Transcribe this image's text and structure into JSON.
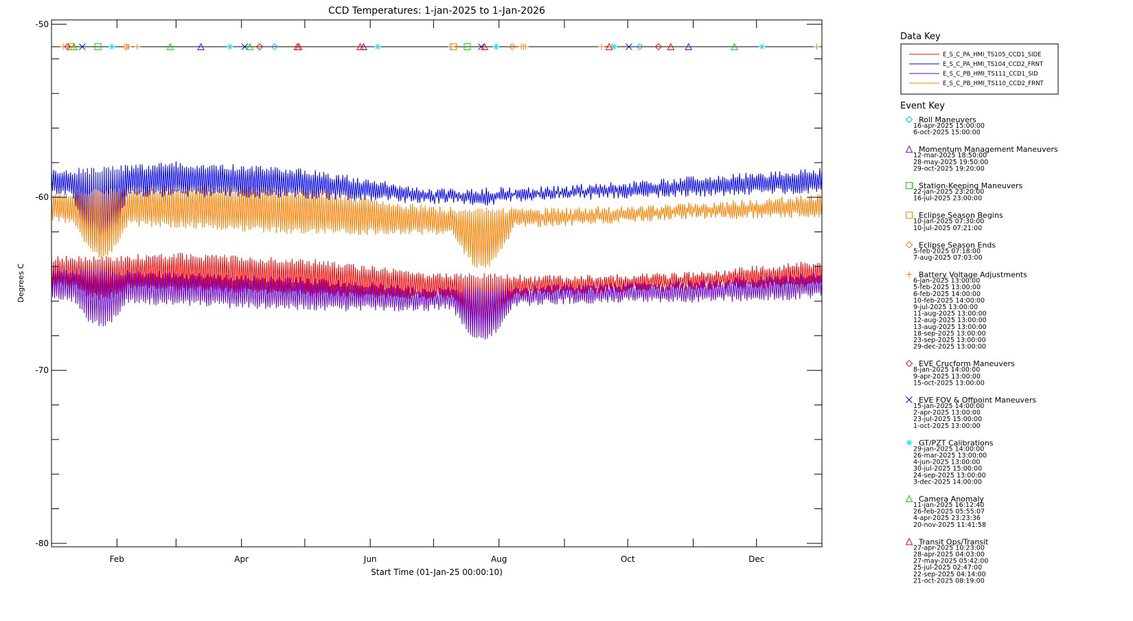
{
  "chart_data": {
    "type": "line",
    "title": "CCD Temperatures: 1-jan-2025 to 1-Jan-2026",
    "xlabel": "Start Time (01-Jan-25 00:00:10)",
    "ylabel": "Degrees C",
    "ylim": [
      -80.2,
      -49.75
    ],
    "xlim_days": [
      0,
      365
    ],
    "x_ticks": [
      {
        "label": "Feb",
        "day": 31
      },
      {
        "label": "Apr",
        "day": 90
      },
      {
        "label": "Jun",
        "day": 151
      },
      {
        "label": "Aug",
        "day": 212
      },
      {
        "label": "Oct",
        "day": 273
      },
      {
        "label": "Dec",
        "day": 334
      }
    ],
    "x_minor_days": [
      31,
      59,
      90,
      120,
      151,
      181,
      212,
      243,
      273,
      304,
      334
    ],
    "y_ticks": [
      -50,
      -60,
      -70,
      -80
    ],
    "y_tick_labels": [
      "-50",
      "-60",
      "-70",
      "-80"
    ],
    "event_line_y": -51.3,
    "series": [
      {
        "name": "E_S_C_PA_HMI_TS105_CCD1_SIDE",
        "color": "#ff0000",
        "knots_day": [
          0,
          60,
          120,
          180,
          240,
          300,
          365
        ],
        "hi": [
          -63.4,
          -63.2,
          -63.5,
          -64.3,
          -64.5,
          -64.3,
          -63.6
        ],
        "lo": [
          -65.3,
          -65.5,
          -65.8,
          -66.0,
          -65.7,
          -65.4,
          -65.2
        ],
        "eclipse": [
          {
            "start": 190,
            "end": 219,
            "depth": 2.2
          },
          {
            "start": 10,
            "end": 36,
            "depth": 0.6
          }
        ]
      },
      {
        "name": "E_S_C_PA_HMI_TS104_CCD2_FRNT",
        "color": "#0000ff",
        "knots_day": [
          0,
          60,
          120,
          180,
          240,
          300,
          365
        ],
        "hi": [
          -58.4,
          -57.9,
          -58.3,
          -59.5,
          -59.3,
          -58.8,
          -58.3
        ],
        "lo": [
          -60.0,
          -60.0,
          -60.1,
          -60.4,
          -60.2,
          -60.0,
          -59.8
        ],
        "eclipse": [
          {
            "start": 10,
            "end": 36,
            "depth": 3.3
          },
          {
            "start": 190,
            "end": 219,
            "depth": 0.2
          }
        ]
      },
      {
        "name": "E_S_C_PB_HMI_TS111_CCD1_SID",
        "color": "#6600cc",
        "knots_day": [
          0,
          60,
          120,
          180,
          240,
          300,
          365
        ],
        "hi": [
          -64.0,
          -64.3,
          -64.6,
          -65.2,
          -65.0,
          -64.8,
          -64.3
        ],
        "lo": [
          -66.0,
          -66.3,
          -66.6,
          -66.6,
          -66.2,
          -66.1,
          -65.9
        ],
        "eclipse": [
          {
            "start": 10,
            "end": 36,
            "depth": 1.4
          },
          {
            "start": 190,
            "end": 219,
            "depth": 1.9
          }
        ]
      },
      {
        "name": "E_S_C_PB_HMI_TS110_CCD2_FRNT",
        "color": "#ff8000",
        "knots_day": [
          0,
          60,
          120,
          180,
          240,
          300,
          365
        ],
        "hi": [
          -59.6,
          -59.3,
          -59.5,
          -60.5,
          -60.6,
          -60.3,
          -59.8
        ],
        "lo": [
          -61.5,
          -61.8,
          -62.2,
          -62.2,
          -61.7,
          -61.3,
          -61.2
        ],
        "eclipse": [
          {
            "start": 10,
            "end": 36,
            "depth": 2.0
          },
          {
            "start": 190,
            "end": 219,
            "depth": 2.2
          }
        ]
      }
    ]
  },
  "data_key_title": "Data Key",
  "event_key_title": "Event Key",
  "events": [
    {
      "name": "Roll Maneuvers",
      "symbol": "diamond",
      "color": "#00bfff",
      "dates": [
        "16-apr-2025 15:00:00",
        "6-oct-2025 15:00:00"
      ]
    },
    {
      "name": "Momentum Management Maneuvers",
      "symbol": "triangle",
      "color": "#6600cc",
      "dates": [
        "12-mar-2025 18:50:00",
        "28-may-2025 19:50:00",
        "29-oct-2025 19:20:00"
      ]
    },
    {
      "name": "Station-Keeping Maneuvers",
      "symbol": "square",
      "color": "#00dd00",
      "dates": [
        "22-jan-2025 23:20:00",
        "16-jul-2025 23:00:00"
      ]
    },
    {
      "name": "Eclipse Season Begins",
      "symbol": "square",
      "color": "#ff8000",
      "dates": [
        "10-jan-2025 07:30:00",
        "10-jul-2025 07:21:00"
      ]
    },
    {
      "name": "Eclipse Season Ends",
      "symbol": "diamond",
      "color": "#ff8000",
      "dates": [
        "5-feb-2025 07:18:00",
        "7-aug-2025 07:03:00"
      ]
    },
    {
      "name": "Battery Voltage Adjustments",
      "symbol": "plus",
      "color": "#ff8000",
      "dates": [
        "6-jan-2025 13:00:00",
        "5-feb-2025 13:00:00",
        "6-feb-2025 14:00:00",
        "10-feb-2025 14:00:00",
        "9-jul-2025 13:00:00",
        "11-aug-2025 13:00:00",
        "12-aug-2025 13:00:00",
        "13-aug-2025 13:00:00",
        "18-sep-2025 13:00:00",
        "23-sep-2025 13:00:00",
        "29-dec-2025 13:00:00"
      ]
    },
    {
      "name": "EVE Crucform Maneuvers",
      "symbol": "diamond",
      "color": "#ff0000",
      "dates": [
        "8-jan-2025 14:00:00",
        "9-apr-2025 13:00:00",
        "15-oct-2025 13:00:00"
      ]
    },
    {
      "name": "EVE FOV & Offpoint Maneuvers",
      "symbol": "x",
      "color": "#0000ff",
      "dates": [
        "15-jan-2025 14:00:00",
        "2-apr-2025 13:00:00",
        "23-jul-2025 15:00:00",
        "1-oct-2025 13:00:00"
      ]
    },
    {
      "name": "GT/PZT Calibrations",
      "symbol": "asterisk",
      "color": "#00e5ee",
      "dates": [
        "29-jan-2025 14:00:00",
        "26-mar-2025 13:00:00",
        "4-jun-2025 13:00:00",
        "30-jul-2025 15:00:00",
        "24-sep-2025 13:00:00",
        "3-dec-2025 14:00:00"
      ]
    },
    {
      "name": "Camera Anomaly",
      "symbol": "triangle",
      "color": "#00dd00",
      "dates": [
        "11-jan-2025 16:12:40",
        "26-feb-2025 05:55:07",
        "4-apr-2025 23:23:36",
        "20-nov-2025 11:41:58"
      ]
    },
    {
      "name": "Transit Ops/Transit",
      "symbol": "triangle",
      "color": "#ff0000",
      "dates": [
        "27-apr-2025 10:23:00",
        "28-apr-2025 04:03:00",
        "27-may-2025 05:42:00",
        "25-jul-2025 02:47:00",
        "22-sep-2025 04:14:00",
        "21-oct-2025 08:19:00"
      ]
    }
  ]
}
